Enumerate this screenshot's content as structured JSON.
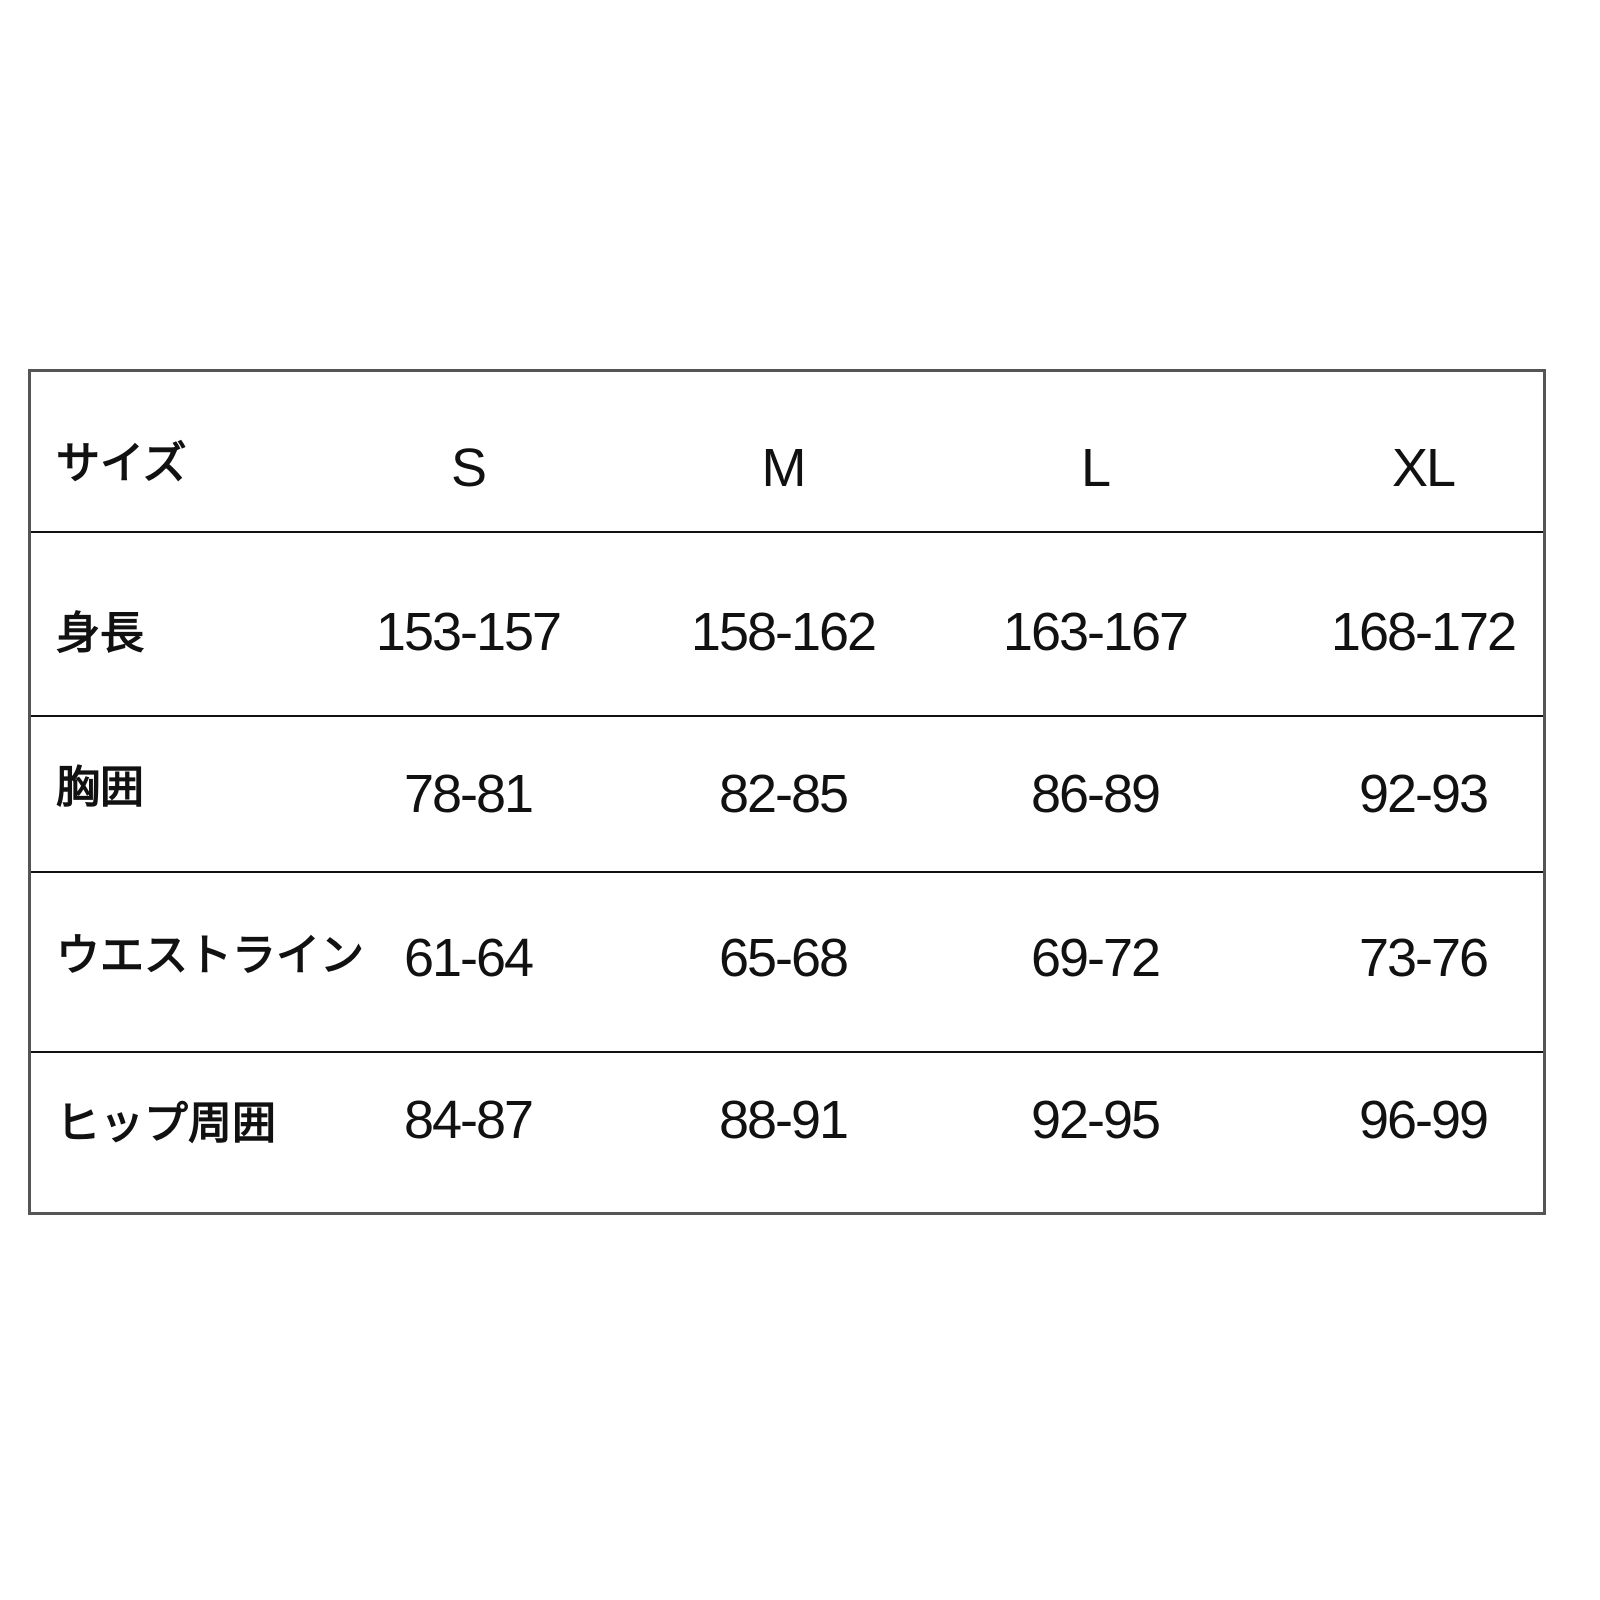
{
  "table": {
    "header": {
      "label": "サイズ",
      "sizes": [
        "S",
        "M",
        "L",
        "XL"
      ]
    },
    "rows": [
      {
        "label": "身長",
        "values": [
          "153-157",
          "158-162",
          "163-167",
          "168-172"
        ]
      },
      {
        "label": "胸囲",
        "values": [
          "78-81",
          "82-85",
          "86-89",
          "92-93"
        ]
      },
      {
        "label": "ウエストライン",
        "values": [
          "61-64",
          "65-68",
          "69-72",
          "73-76"
        ]
      },
      {
        "label": "ヒップ周囲",
        "values": [
          "84-87",
          "88-91",
          "92-95",
          "96-99"
        ]
      }
    ]
  }
}
